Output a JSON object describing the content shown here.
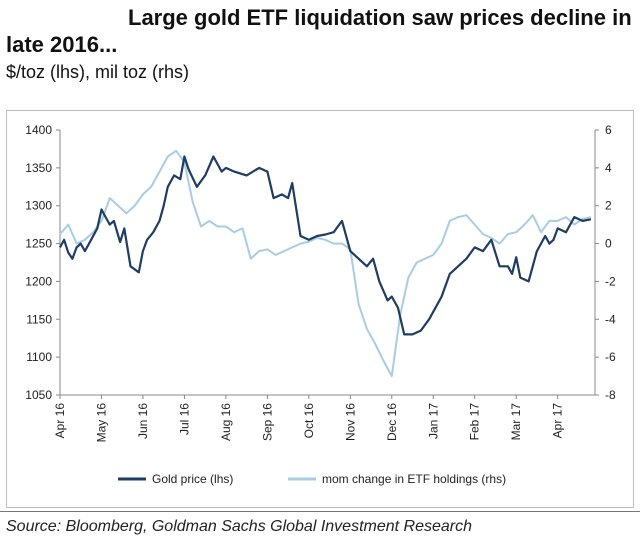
{
  "header": {
    "title": "Large gold ETF liquidation saw prices decline in late 2016...",
    "subtitle": "$/toz (lhs), mil toz (rhs)"
  },
  "footer": {
    "source": "Source: Bloomberg, Goldman Sachs Global Investment Research"
  },
  "chart_data": {
    "type": "line",
    "title": "Large gold ETF liquidation saw prices decline in late 2016...",
    "subtitle": "$/toz (lhs), mil toz (rhs)",
    "x_ticks": [
      "Apr 16",
      "May 16",
      "Jun 16",
      "Jul 16",
      "Aug 16",
      "Sep 16",
      "Oct 16",
      "Nov 16",
      "Dec 16",
      "Jan 17",
      "Feb 17",
      "Mar 17",
      "Apr 17"
    ],
    "x_range": [
      0,
      12.9
    ],
    "ylim_left": [
      1050,
      1400
    ],
    "yticks_left": [
      1050,
      1100,
      1150,
      1200,
      1250,
      1300,
      1350,
      1400
    ],
    "ylim_right": [
      -8,
      6
    ],
    "yticks_right": [
      -8,
      -6,
      -4,
      -2,
      0,
      2,
      4,
      6
    ],
    "legend_position": "bottom",
    "colors": {
      "gold": "#1f3c63",
      "etf": "#a8cce6"
    },
    "series": [
      {
        "name": "Gold price (lhs)",
        "axis": "left",
        "x": [
          0,
          0.1,
          0.2,
          0.3,
          0.4,
          0.5,
          0.6,
          0.75,
          0.9,
          1.0,
          1.1,
          1.2,
          1.3,
          1.45,
          1.55,
          1.7,
          1.9,
          2.0,
          2.1,
          2.25,
          2.4,
          2.5,
          2.6,
          2.75,
          2.9,
          3.0,
          3.1,
          3.3,
          3.5,
          3.7,
          3.9,
          4.0,
          4.2,
          4.5,
          4.8,
          5.0,
          5.15,
          5.35,
          5.5,
          5.6,
          5.8,
          6.0,
          6.2,
          6.4,
          6.6,
          6.8,
          7.0,
          7.2,
          7.4,
          7.55,
          7.7,
          7.9,
          8.0,
          8.15,
          8.3,
          8.5,
          8.7,
          8.9,
          9.0,
          9.2,
          9.4,
          9.6,
          9.8,
          10.0,
          10.2,
          10.4,
          10.6,
          10.8,
          10.9,
          11.0,
          11.1,
          11.3,
          11.5,
          11.7,
          11.8,
          11.9,
          12.0,
          12.2,
          12.4,
          12.6,
          12.8
        ],
        "y": [
          1245,
          1255,
          1238,
          1230,
          1245,
          1250,
          1240,
          1255,
          1270,
          1295,
          1285,
          1275,
          1280,
          1252,
          1270,
          1220,
          1212,
          1240,
          1255,
          1265,
          1280,
          1300,
          1325,
          1340,
          1335,
          1365,
          1348,
          1325,
          1340,
          1365,
          1345,
          1350,
          1345,
          1340,
          1350,
          1345,
          1310,
          1315,
          1310,
          1330,
          1260,
          1255,
          1260,
          1262,
          1265,
          1280,
          1240,
          1230,
          1220,
          1230,
          1200,
          1175,
          1180,
          1165,
          1130,
          1130,
          1135,
          1150,
          1160,
          1180,
          1210,
          1220,
          1230,
          1245,
          1240,
          1255,
          1220,
          1220,
          1210,
          1232,
          1205,
          1200,
          1240,
          1260,
          1250,
          1255,
          1270,
          1265,
          1285,
          1280,
          1282
        ]
      },
      {
        "name": "mom change in ETF holdings (rhs)",
        "axis": "right",
        "x": [
          0,
          0.2,
          0.4,
          0.6,
          0.8,
          1.0,
          1.2,
          1.4,
          1.6,
          1.8,
          2.0,
          2.2,
          2.4,
          2.6,
          2.8,
          3.0,
          3.2,
          3.4,
          3.6,
          3.8,
          4.0,
          4.2,
          4.4,
          4.6,
          4.8,
          5.0,
          5.2,
          5.4,
          5.6,
          5.8,
          6.0,
          6.2,
          6.4,
          6.6,
          6.8,
          7.0,
          7.2,
          7.4,
          7.6,
          7.8,
          8.0,
          8.2,
          8.4,
          8.6,
          8.8,
          9.0,
          9.2,
          9.4,
          9.6,
          9.8,
          10.0,
          10.2,
          10.4,
          10.6,
          10.8,
          11.0,
          11.2,
          11.4,
          11.6,
          11.8,
          12.0,
          12.2,
          12.4,
          12.6,
          12.8
        ],
        "y": [
          0.5,
          1.0,
          0.0,
          0.2,
          0.6,
          1.2,
          2.4,
          2.0,
          1.6,
          2.0,
          2.6,
          3.0,
          3.8,
          4.6,
          4.9,
          4.3,
          2.2,
          0.9,
          1.2,
          0.9,
          0.9,
          0.6,
          0.8,
          -0.8,
          -0.4,
          -0.3,
          -0.6,
          -0.4,
          -0.2,
          0.0,
          0.1,
          0.3,
          0.2,
          0.0,
          0.0,
          -0.3,
          -3.2,
          -4.5,
          -5.3,
          -6.2,
          -7.0,
          -3.8,
          -1.8,
          -1.0,
          -0.8,
          -0.6,
          0.0,
          1.2,
          1.4,
          1.5,
          1.0,
          0.5,
          0.3,
          0.0,
          0.5,
          0.6,
          1.0,
          1.5,
          0.6,
          1.2,
          1.2,
          1.4,
          1.0,
          1.3,
          1.4
        ]
      }
    ]
  }
}
